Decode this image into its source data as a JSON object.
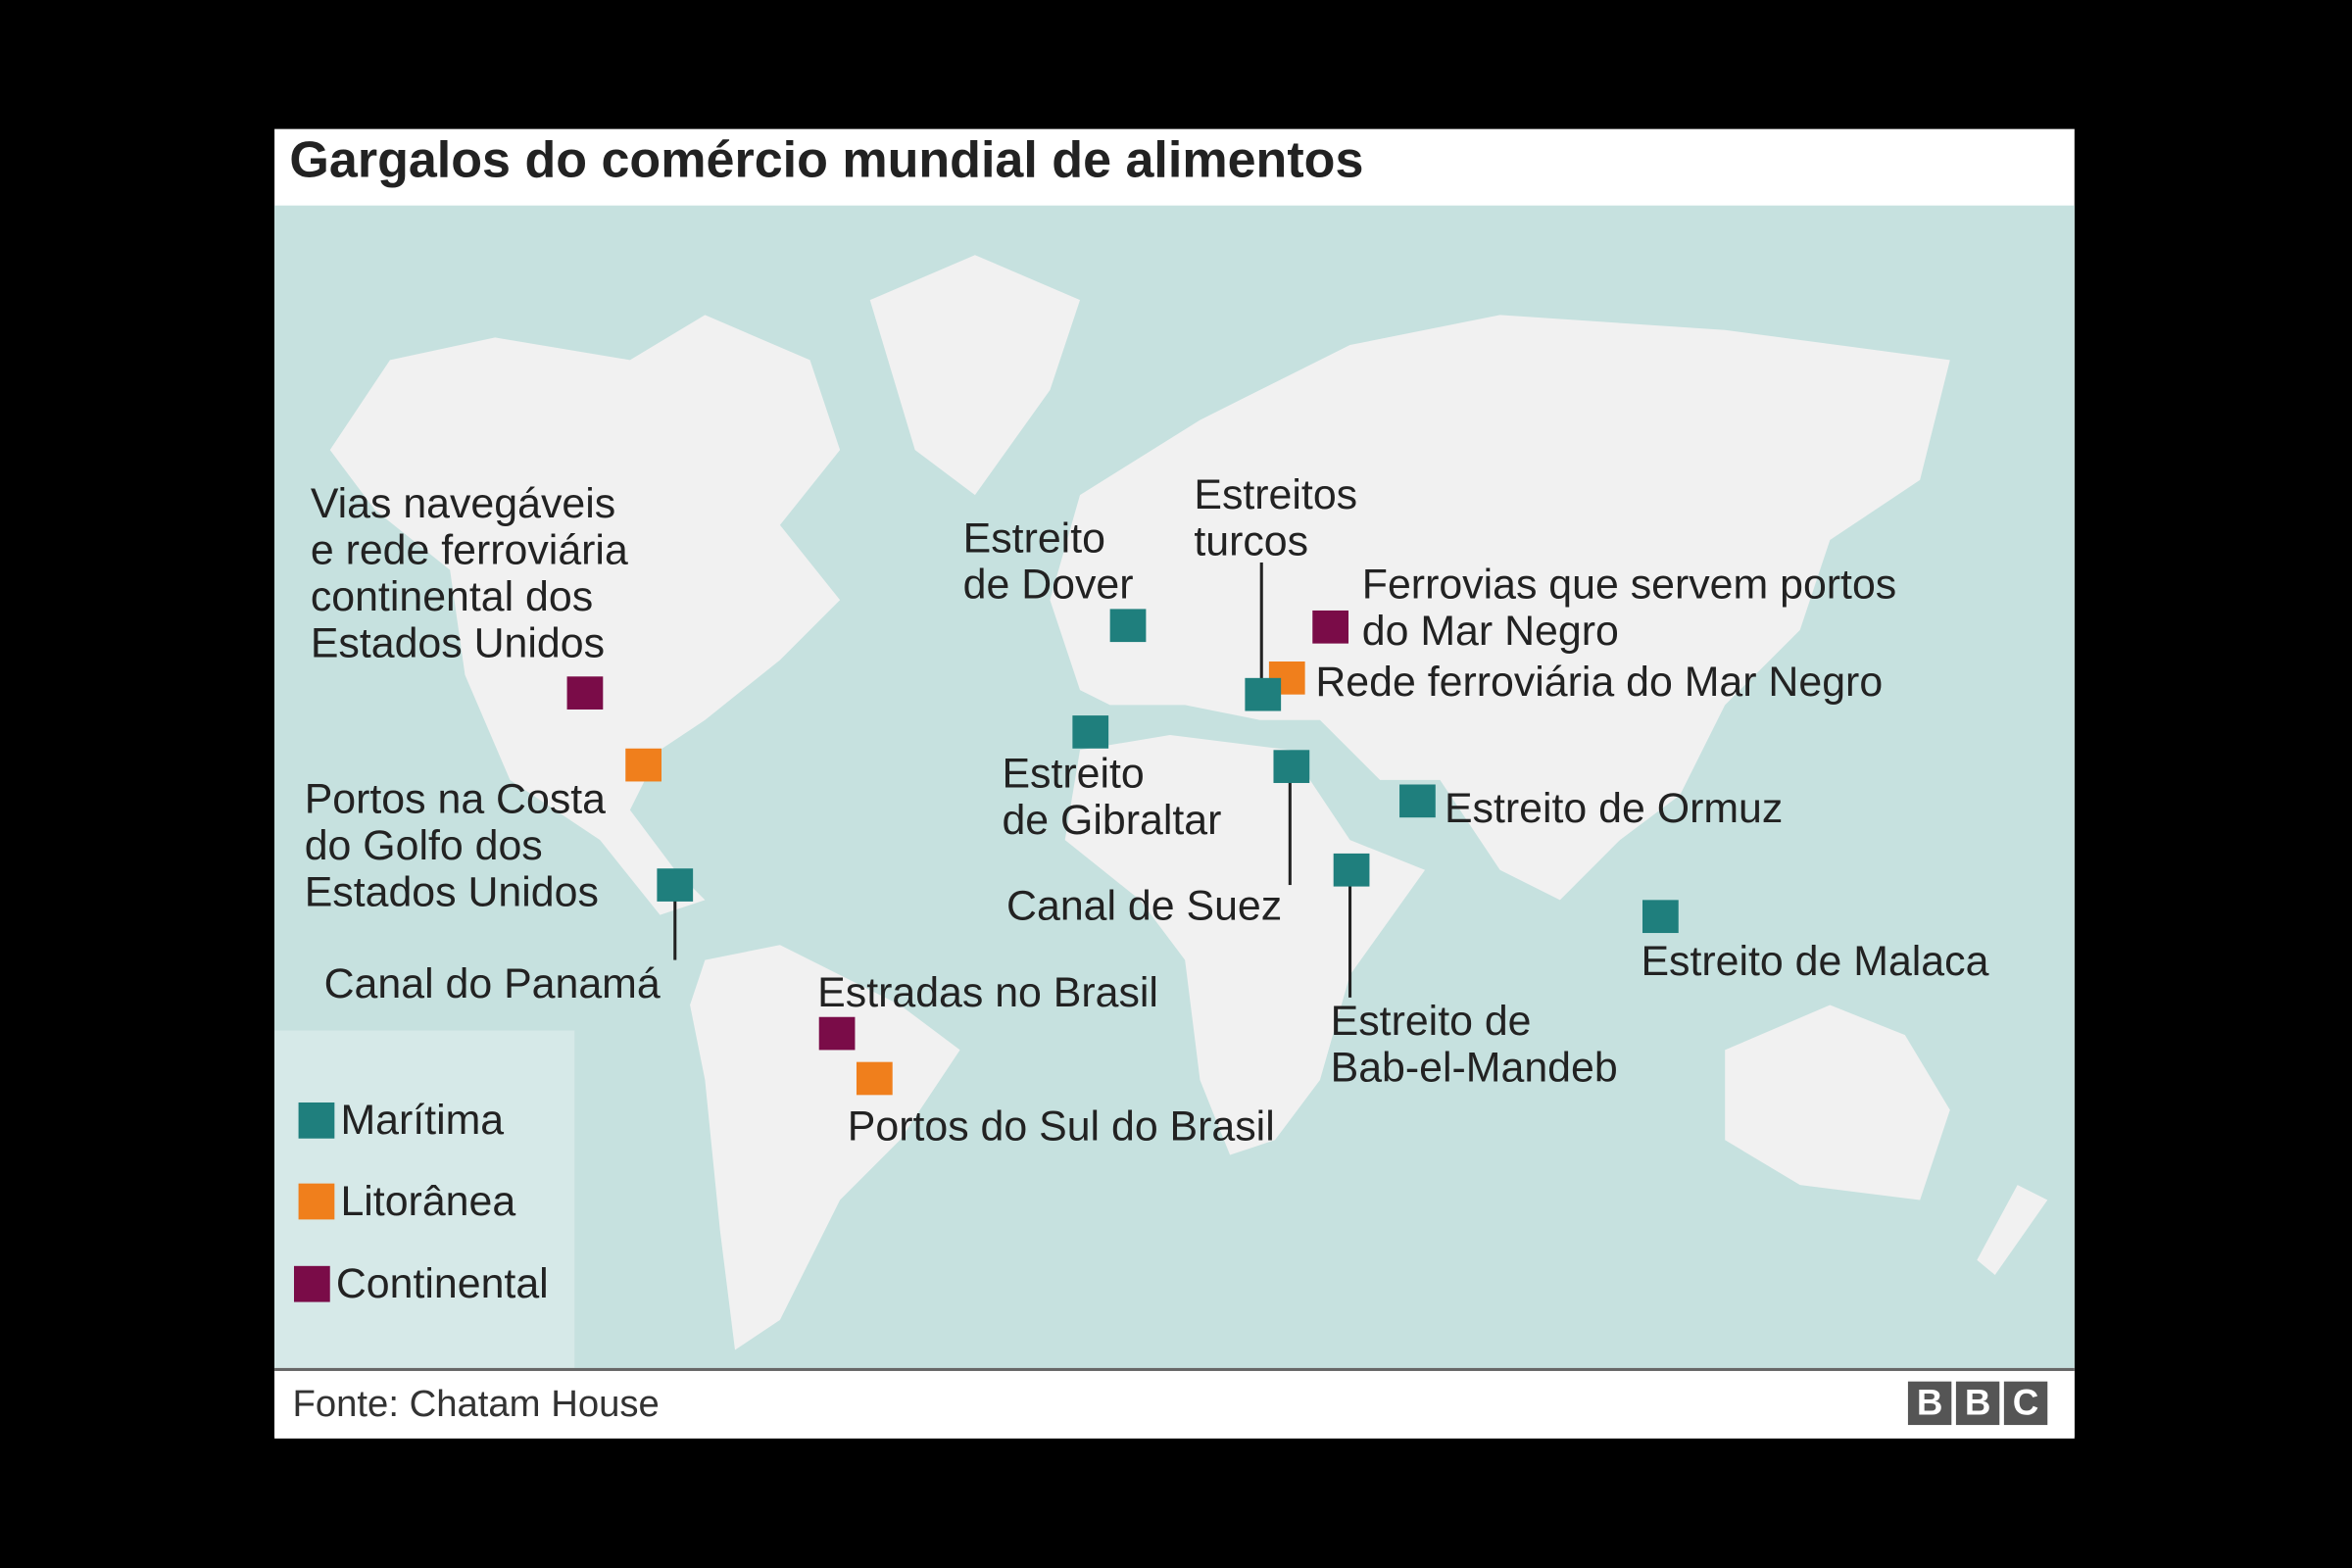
{
  "title": "Gargalos do comércio mundial de alimentos",
  "colors": {
    "maritima": "#1f7f7d",
    "litoranea": "#f07f1c",
    "continental": "#7a0c48",
    "sea": "#c6e1df",
    "land": "#f1f1f1"
  },
  "labels": {
    "us_waterways": [
      "Vias navegáveis",
      "e rede ferroviária",
      "continental dos",
      "Estados Unidos"
    ],
    "us_gulf": [
      "Portos na Costa",
      "do Golfo dos",
      "Estados Unidos"
    ],
    "panama": "Canal do Panamá",
    "dover": [
      "Estreito",
      "de Dover"
    ],
    "turkish": [
      "Estreitos",
      "turcos"
    ],
    "black_sea_ports_rail": [
      "Ferrovias que servem portos",
      "do Mar Negro"
    ],
    "black_sea_rail": "Rede ferroviária do Mar Negro",
    "gibraltar": [
      "Estreito",
      "de Gibraltar"
    ],
    "ormuz": "Estreito de Ormuz",
    "suez": "Canal de Suez",
    "malacca": "Estreito de Malaca",
    "bab_el_mandeb": [
      "Estreito de",
      "Bab-el-Mandeb"
    ],
    "brazil_roads": "Estradas no Brasil",
    "brazil_south_ports": "Portos do Sul do Brasil"
  },
  "legend": [
    {
      "label": "Marítima",
      "type": "maritima"
    },
    {
      "label": "Litorânea",
      "type": "litoranea"
    },
    {
      "label": "Continental",
      "type": "continental"
    }
  ],
  "source": "Fonte: Chatam House",
  "logo": [
    "B",
    "B",
    "C"
  ]
}
